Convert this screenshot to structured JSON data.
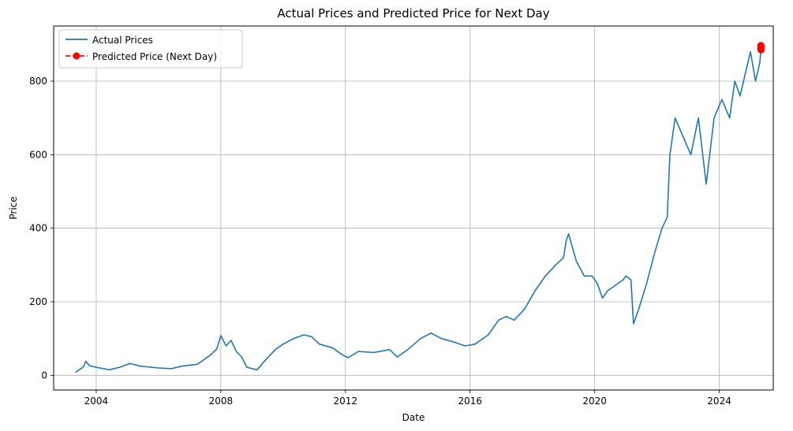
{
  "chart_data": {
    "type": "line",
    "title": "Actual Prices and Predicted Price for Next Day",
    "xlabel": "Date",
    "ylabel": "Price",
    "xlim": [
      "2002-08-20",
      "2025-09-25"
    ],
    "ylim": [
      -40,
      950
    ],
    "x_ticks": [
      "2004",
      "2008",
      "2012",
      "2016",
      "2020",
      "2024"
    ],
    "y_ticks": [
      "0",
      "200",
      "400",
      "600",
      "800"
    ],
    "grid": true,
    "legend_position": "upper-left",
    "legend": [
      "Actual Prices",
      "Predicted Price (Next Day)"
    ],
    "colors": {
      "actual": "#1f77b4",
      "predicted": "#ff0000"
    },
    "series": [
      {
        "name": "Actual Prices",
        "style": "solid line",
        "points": [
          [
            "2003-05-01",
            8
          ],
          [
            "2003-06-15",
            15
          ],
          [
            "2003-08-01",
            22
          ],
          [
            "2003-09-01",
            38
          ],
          [
            "2003-10-15",
            26
          ],
          [
            "2004-01-01",
            22
          ],
          [
            "2004-06-01",
            15
          ],
          [
            "2004-10-01",
            22
          ],
          [
            "2005-02-01",
            32
          ],
          [
            "2005-06-01",
            25
          ],
          [
            "2006-01-01",
            20
          ],
          [
            "2006-06-01",
            18
          ],
          [
            "2006-10-01",
            25
          ],
          [
            "2007-04-01",
            30
          ],
          [
            "2007-09-01",
            55
          ],
          [
            "2007-11-15",
            72
          ],
          [
            "2008-01-01",
            108
          ],
          [
            "2008-03-01",
            80
          ],
          [
            "2008-05-01",
            95
          ],
          [
            "2008-07-01",
            65
          ],
          [
            "2008-09-01",
            50
          ],
          [
            "2008-11-01",
            22
          ],
          [
            "2009-03-01",
            15
          ],
          [
            "2009-06-01",
            40
          ],
          [
            "2009-10-01",
            70
          ],
          [
            "2010-01-01",
            85
          ],
          [
            "2010-05-01",
            100
          ],
          [
            "2010-09-01",
            110
          ],
          [
            "2010-12-01",
            105
          ],
          [
            "2011-03-01",
            85
          ],
          [
            "2011-08-01",
            75
          ],
          [
            "2011-12-01",
            55
          ],
          [
            "2012-02-01",
            48
          ],
          [
            "2012-06-01",
            65
          ],
          [
            "2012-12-01",
            62
          ],
          [
            "2013-06-01",
            70
          ],
          [
            "2013-09-01",
            50
          ],
          [
            "2014-01-01",
            70
          ],
          [
            "2014-06-01",
            100
          ],
          [
            "2014-10-01",
            115
          ],
          [
            "2015-02-01",
            100
          ],
          [
            "2015-07-01",
            90
          ],
          [
            "2015-11-01",
            80
          ],
          [
            "2016-03-01",
            85
          ],
          [
            "2016-08-01",
            110
          ],
          [
            "2016-12-01",
            150
          ],
          [
            "2017-03-01",
            160
          ],
          [
            "2017-06-01",
            150
          ],
          [
            "2017-10-01",
            180
          ],
          [
            "2018-02-01",
            230
          ],
          [
            "2018-06-01",
            270
          ],
          [
            "2018-10-01",
            300
          ],
          [
            "2019-01-01",
            320
          ],
          [
            "2019-02-01",
            365
          ],
          [
            "2019-03-01",
            385
          ],
          [
            "2019-06-01",
            310
          ],
          [
            "2019-09-01",
            270
          ],
          [
            "2019-12-01",
            270
          ],
          [
            "2020-02-01",
            250
          ],
          [
            "2020-04-01",
            210
          ],
          [
            "2020-06-01",
            230
          ],
          [
            "2020-09-01",
            245
          ],
          [
            "2020-12-01",
            260
          ],
          [
            "2021-01-01",
            270
          ],
          [
            "2021-03-01",
            260
          ],
          [
            "2021-04-01",
            140
          ],
          [
            "2021-06-01",
            180
          ],
          [
            "2021-09-01",
            250
          ],
          [
            "2021-12-01",
            330
          ],
          [
            "2022-03-01",
            400
          ],
          [
            "2022-05-01",
            430
          ],
          [
            "2022-06-01",
            600
          ],
          [
            "2022-08-01",
            700
          ],
          [
            "2022-11-01",
            650
          ],
          [
            "2023-02-01",
            600
          ],
          [
            "2023-05-01",
            700
          ],
          [
            "2023-08-01",
            520
          ],
          [
            "2023-11-01",
            700
          ],
          [
            "2024-02-01",
            750
          ],
          [
            "2024-05-01",
            700
          ],
          [
            "2024-07-01",
            800
          ],
          [
            "2024-09-01",
            760
          ],
          [
            "2024-11-01",
            820
          ],
          [
            "2025-01-01",
            880
          ],
          [
            "2025-03-01",
            800
          ],
          [
            "2025-04-20",
            850
          ],
          [
            "2025-05-05",
            890
          ]
        ]
      },
      {
        "name": "Predicted Price (Next Day)",
        "style": "dashed line with circle markers",
        "points": [
          [
            "2025-05-01",
            887
          ],
          [
            "2025-05-02",
            893
          ],
          [
            "2025-05-03",
            897
          ],
          [
            "2025-05-04",
            890
          ],
          [
            "2025-05-05",
            885
          ],
          [
            "2025-05-06",
            895
          ]
        ]
      }
    ]
  }
}
